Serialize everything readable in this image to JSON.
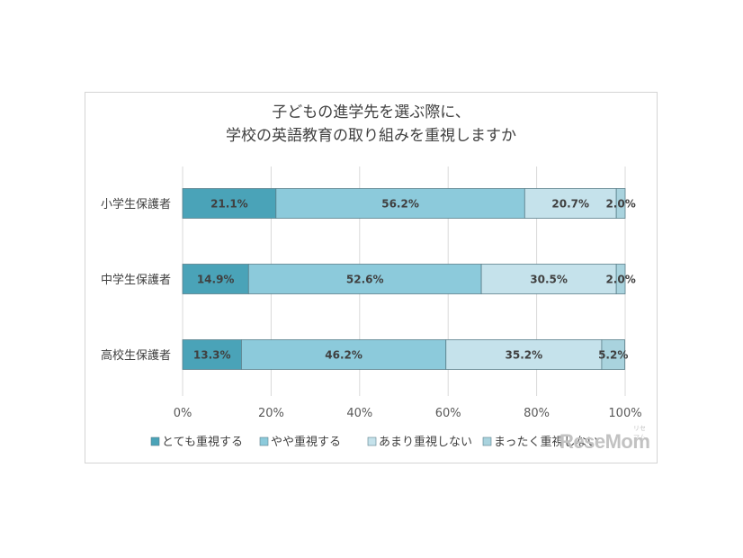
{
  "chart_data": {
    "type": "bar",
    "orientation": "horizontal-stacked-100",
    "title_lines": [
      "子どもの進学先を選ぶ際に、",
      "学校の英語教育の取り組みを重視しますか"
    ],
    "categories": [
      "小学生保護者",
      "中学生保護者",
      "高校生保護者"
    ],
    "series": [
      {
        "name": "とても重視する",
        "color": "#4aa3b8",
        "values": [
          21.1,
          14.9,
          13.3
        ],
        "labels": [
          "21.1%",
          "14.9%",
          "13.3%"
        ]
      },
      {
        "name": "やや重視する",
        "color": "#8ccadb",
        "values": [
          56.2,
          52.6,
          46.2
        ],
        "labels": [
          "56.2%",
          "52.6%",
          "46.2%"
        ]
      },
      {
        "name": "あまり重視しない",
        "color": "#c5e2eb",
        "values": [
          20.7,
          30.5,
          35.2
        ],
        "labels": [
          "20.7%",
          "30.5%",
          "35.2%"
        ]
      },
      {
        "name": "まったく重視しない",
        "color": "#a9d3de",
        "values": [
          2.0,
          2.0,
          5.2
        ],
        "labels": [
          "2.0%",
          "2.0%",
          "5.2%"
        ]
      }
    ],
    "x_ticks": [
      "0%",
      "20%",
      "40%",
      "60%",
      "80%",
      "100%"
    ],
    "xlim": [
      0,
      100
    ],
    "grid": true,
    "legend_position": "bottom"
  },
  "watermark": {
    "text": "ReseMom",
    "sub": "リセマム"
  }
}
